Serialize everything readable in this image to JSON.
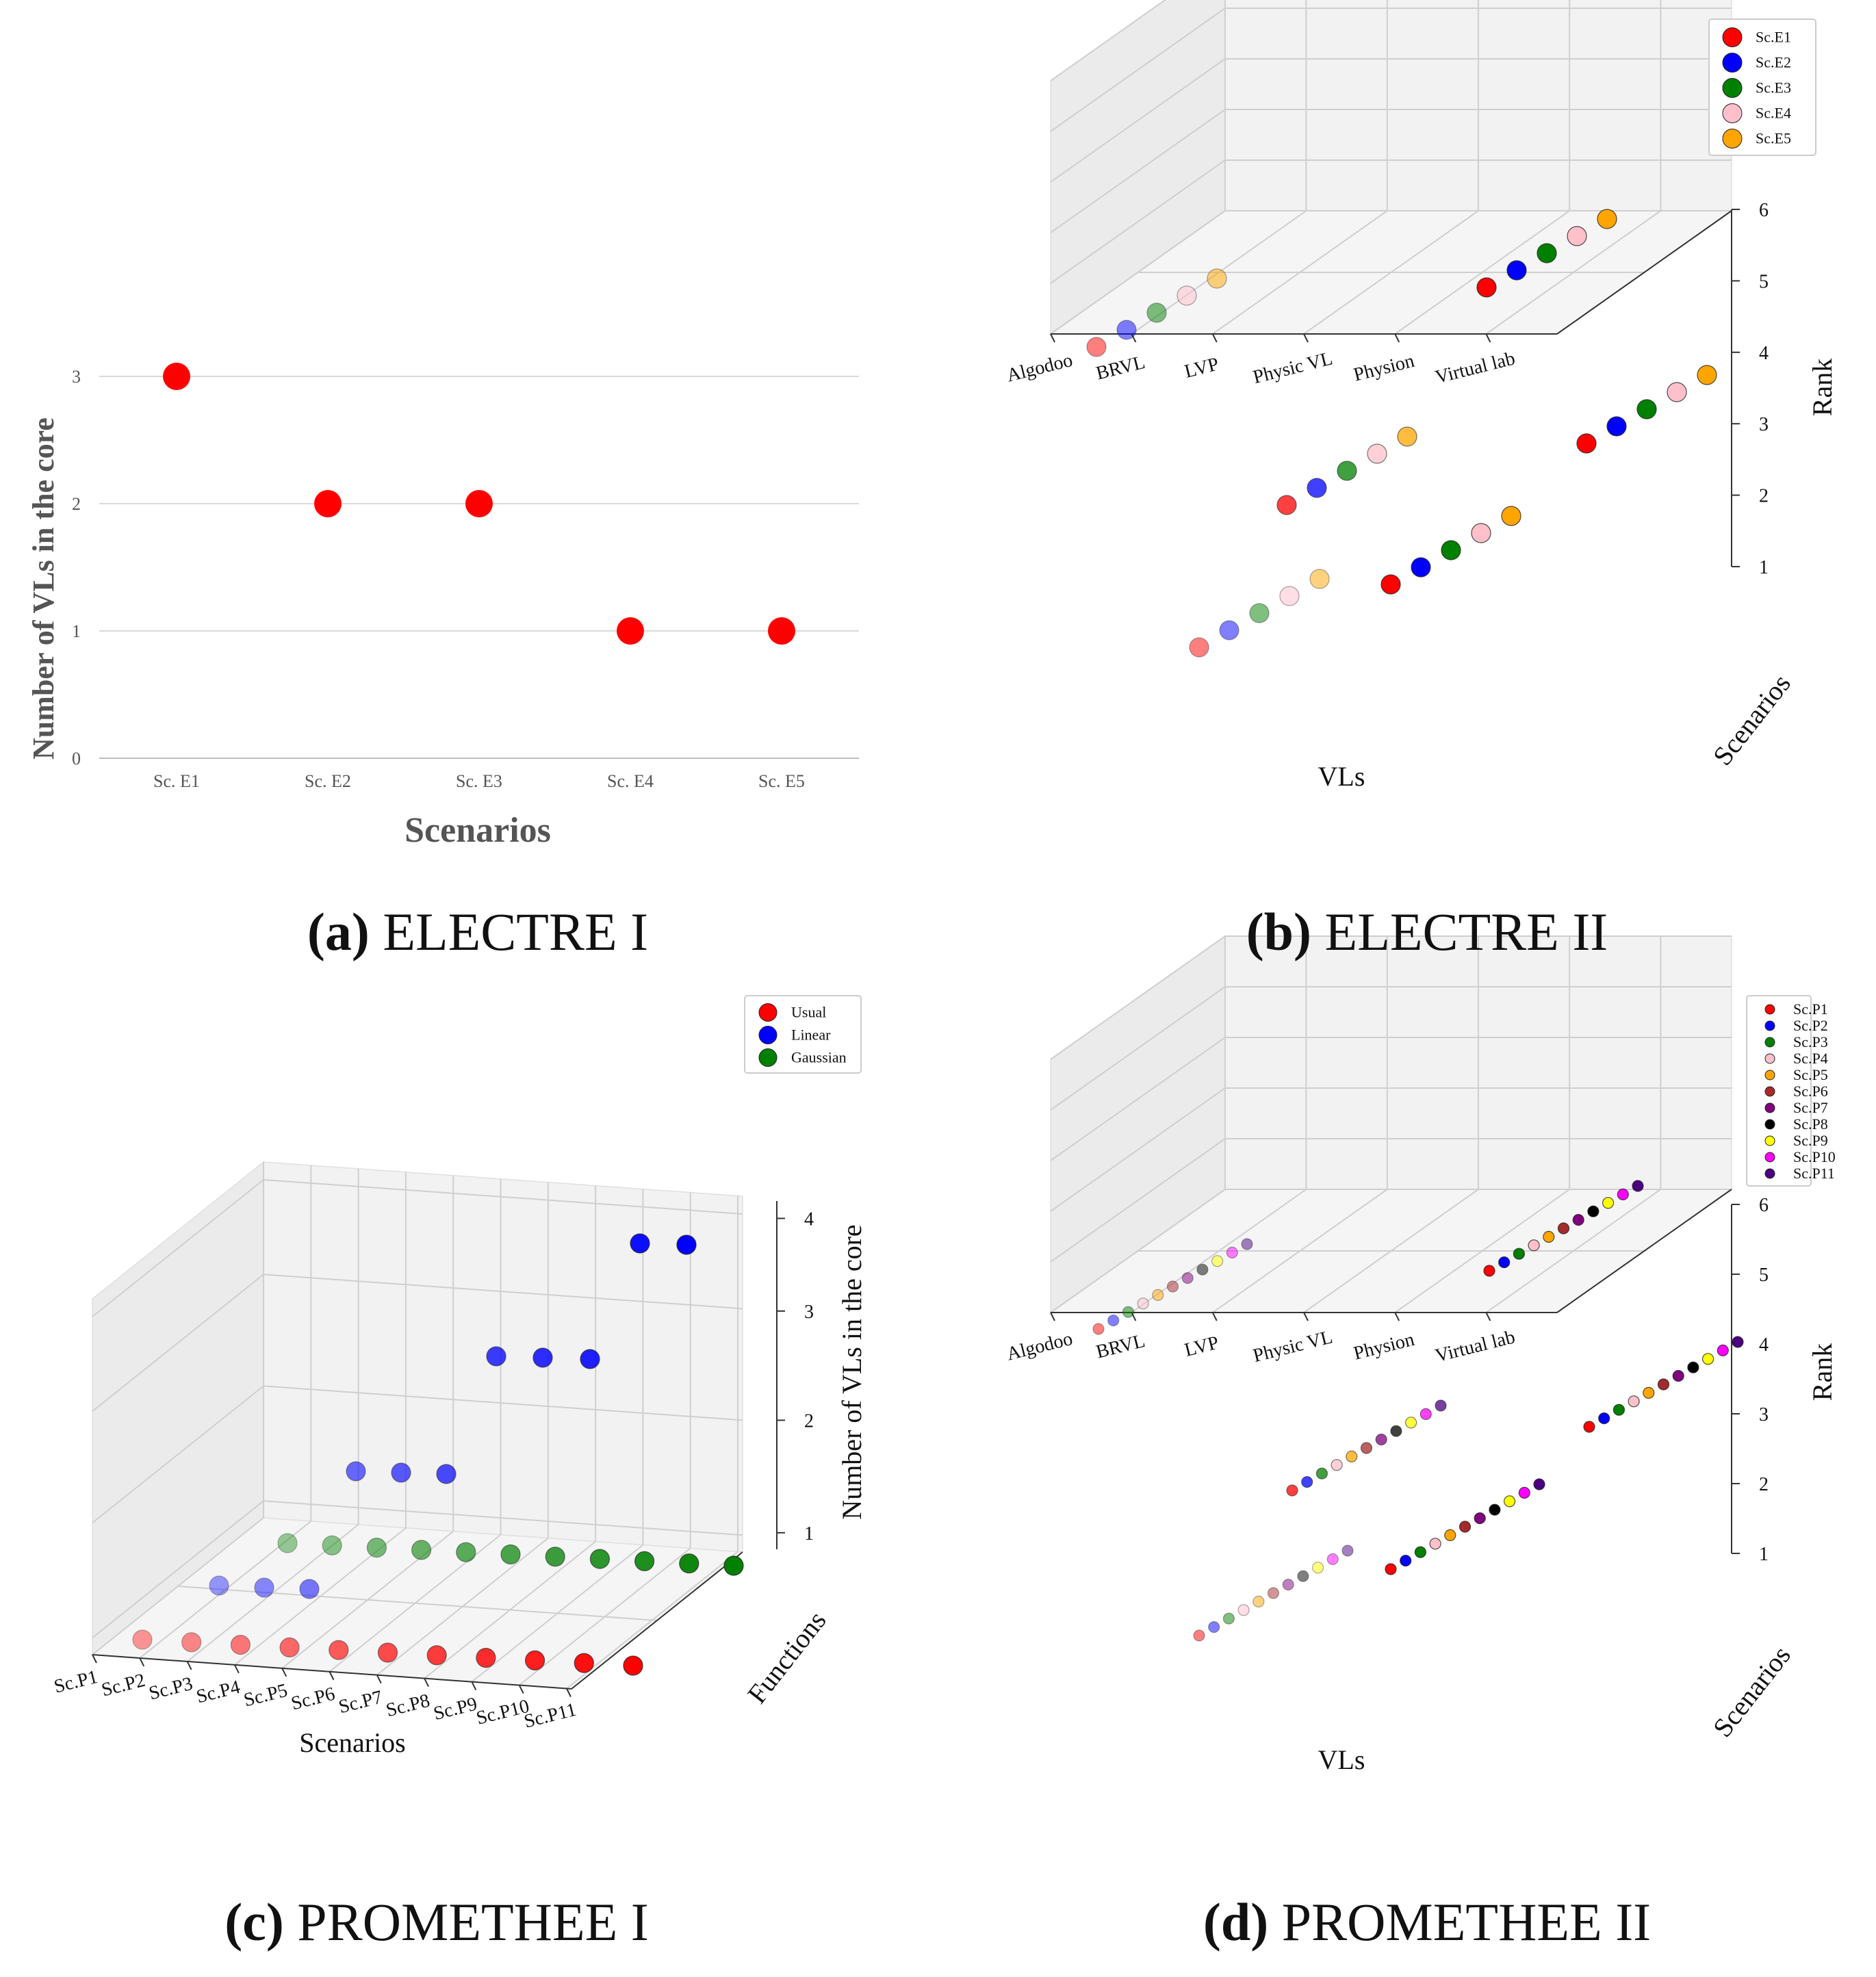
{
  "chart_data": [
    {
      "id": "a",
      "type": "scatter",
      "caption_letter": "(a)",
      "caption_text": "ELECTRE I",
      "xlabel": "Scenarios",
      "ylabel": "Number of VLs in the core",
      "categories": [
        "Sc. E1",
        "Sc. E2",
        "Sc. E3",
        "Sc. E4",
        "Sc. E5"
      ],
      "values": [
        3,
        2,
        2,
        1,
        1
      ],
      "yticks": [
        "0",
        "1",
        "2",
        "3"
      ],
      "ylim": [
        0,
        3
      ],
      "grid": true,
      "color": "#ff0000"
    },
    {
      "id": "b",
      "type": "scatter",
      "caption_letter": "(b)",
      "caption_text": "ELECTRE II",
      "xlabel": "VLs",
      "ylabel": "Scenarios",
      "zlabel": "Rank",
      "categories": [
        "Algodoo",
        "BRVL",
        "LVP",
        "Physic VL",
        "Physion",
        "Virtual lab"
      ],
      "zticks": [
        "1",
        "2",
        "3",
        "4",
        "5",
        "6"
      ],
      "legend_position": "top-right",
      "series": [
        {
          "name": "Sc.E1",
          "color": "#ff0000",
          "values": [
            5,
            1,
            3,
            2,
            3,
            5
          ]
        },
        {
          "name": "Sc.E2",
          "color": "#0000ff",
          "values": [
            5,
            1,
            3,
            2,
            3,
            5
          ]
        },
        {
          "name": "Sc.E3",
          "color": "#008000",
          "values": [
            5,
            1,
            3,
            2,
            3,
            5
          ]
        },
        {
          "name": "Sc.E4",
          "color": "#ffc0cb",
          "values": [
            5,
            1,
            3,
            2,
            3,
            5
          ]
        },
        {
          "name": "Sc.E5",
          "color": "#ffa500",
          "values": [
            5,
            1,
            3,
            2,
            3,
            5
          ]
        }
      ]
    },
    {
      "id": "c",
      "type": "scatter",
      "caption_letter": "(c)",
      "caption_text": "PROMETHEE I",
      "xlabel": "Scenarios",
      "ylabel": "Functions",
      "zlabel": "Number of VLs in the core",
      "categories": [
        "Sc.P1",
        "Sc.P2",
        "Sc.P3",
        "Sc.P4",
        "Sc.P5",
        "Sc.P6",
        "Sc.P7",
        "Sc.P8",
        "Sc.P9",
        "Sc.P10",
        "Sc.P11"
      ],
      "zticks": [
        "1",
        "2",
        "3",
        "4"
      ],
      "legend_position": "top-right",
      "series": [
        {
          "name": "Usual",
          "color": "#ff0000",
          "values": [
            1,
            1,
            1,
            1,
            1,
            1,
            1,
            1,
            1,
            1,
            1
          ]
        },
        {
          "name": "Linear",
          "color": "#0000ff",
          "values": [
            1,
            1,
            1,
            2,
            2,
            2,
            3,
            3,
            3,
            4,
            4
          ]
        },
        {
          "name": "Gaussian",
          "color": "#008000",
          "values": [
            1,
            1,
            1,
            1,
            1,
            1,
            1,
            1,
            1,
            1,
            1
          ]
        }
      ]
    },
    {
      "id": "d",
      "type": "scatter",
      "caption_letter": "(d)",
      "caption_text": "PROMETHEE II",
      "xlabel": "VLs",
      "ylabel": "Scenarios",
      "zlabel": "Rank",
      "categories": [
        "Algodoo",
        "BRVL",
        "LVP",
        "Physic VL",
        "Physion",
        "Virtual lab"
      ],
      "zticks": [
        "1",
        "2",
        "3",
        "4",
        "5",
        "6"
      ],
      "legend_position": "top-right",
      "series": [
        {
          "name": "Sc.P1",
          "color": "#ff0000",
          "values": [
            5,
            1,
            3,
            2,
            3,
            5
          ]
        },
        {
          "name": "Sc.P2",
          "color": "#0000ff",
          "values": [
            5,
            1,
            3,
            2,
            3,
            5
          ]
        },
        {
          "name": "Sc.P3",
          "color": "#008000",
          "values": [
            5,
            1,
            3,
            2,
            3,
            5
          ]
        },
        {
          "name": "Sc.P4",
          "color": "#ffc0cb",
          "values": [
            5,
            1,
            3,
            2,
            3,
            5
          ]
        },
        {
          "name": "Sc.P5",
          "color": "#ffa500",
          "values": [
            5,
            1,
            3,
            2,
            3,
            5
          ]
        },
        {
          "name": "Sc.P6",
          "color": "#a52a2a",
          "values": [
            5,
            1,
            3,
            2,
            3,
            5
          ]
        },
        {
          "name": "Sc.P7",
          "color": "#800080",
          "values": [
            5,
            1,
            3,
            2,
            3,
            5
          ]
        },
        {
          "name": "Sc.P8",
          "color": "#000000",
          "values": [
            5,
            1,
            3,
            2,
            3,
            5
          ]
        },
        {
          "name": "Sc.P9",
          "color": "#ffff00",
          "values": [
            5,
            1,
            3,
            2,
            3,
            5
          ]
        },
        {
          "name": "Sc.P10",
          "color": "#ff00ff",
          "values": [
            5,
            1,
            3,
            2,
            3,
            5
          ]
        },
        {
          "name": "Sc.P11",
          "color": "#4b0082",
          "values": [
            5,
            1,
            3,
            2,
            3,
            5
          ]
        }
      ]
    }
  ]
}
